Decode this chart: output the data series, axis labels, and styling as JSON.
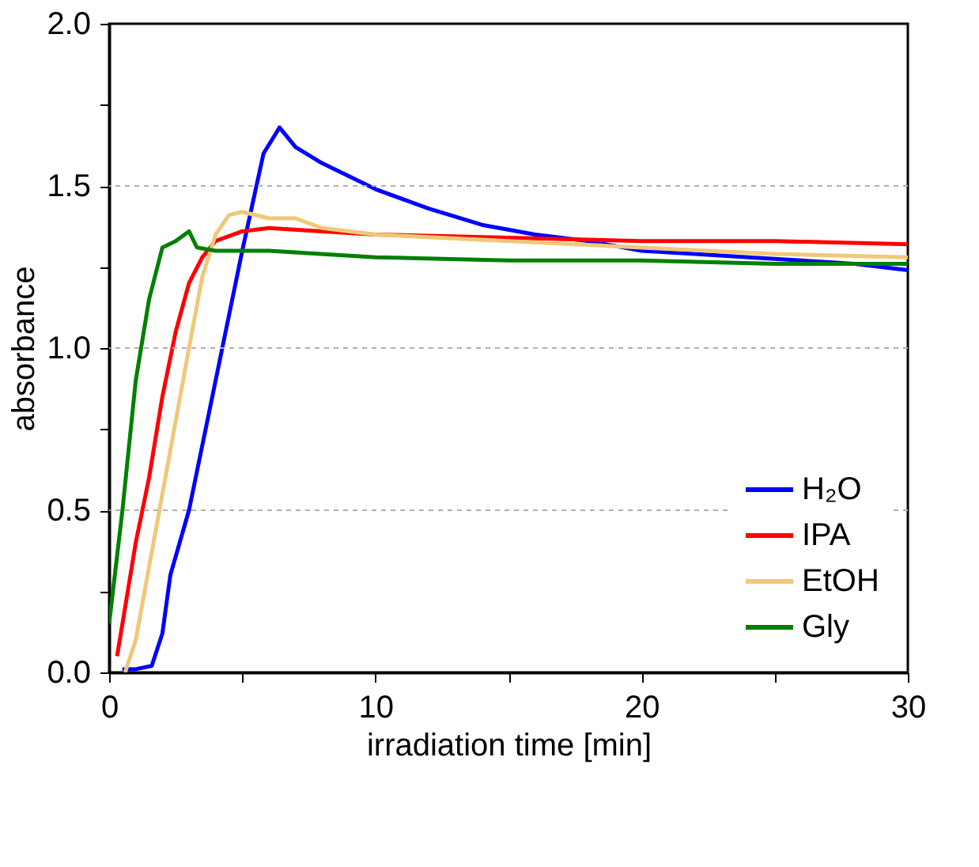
{
  "chart_data": {
    "type": "line",
    "xlabel": "irradiation time [min]",
    "ylabel": "absorbance",
    "xlim": [
      0,
      30
    ],
    "ylim": [
      0,
      2.0
    ],
    "xticks": [
      0,
      {
        "value": 5,
        "label": null
      },
      10,
      {
        "value": 15,
        "label": null
      },
      20,
      {
        "value": 25,
        "label": null
      },
      30
    ],
    "yticks": [
      {
        "value": 0,
        "label": "0.0"
      },
      {
        "value": 0.25,
        "label": null
      },
      {
        "value": 0.5,
        "label": "0.5"
      },
      {
        "value": 0.75,
        "label": null
      },
      {
        "value": 1.0,
        "label": "1.0"
      },
      {
        "value": 1.25,
        "label": null
      },
      {
        "value": 1.5,
        "label": "1.5"
      },
      {
        "value": 1.75,
        "label": null
      },
      {
        "value": 2.0,
        "label": "2.0"
      }
    ],
    "grid": "y",
    "legend": "bottom right",
    "line_style": "solid",
    "marker": "none",
    "series": [
      {
        "name": "H₂O",
        "color": "#0000ff",
        "x": [
          0.5,
          1,
          1.6,
          2.0,
          2.3,
          3,
          4,
          5,
          5.8,
          6.4,
          7,
          8,
          10,
          12,
          14,
          16,
          18,
          20,
          22,
          24,
          26,
          28,
          30
        ],
        "values": [
          0.01,
          0.01,
          0.02,
          0.12,
          0.3,
          0.5,
          0.9,
          1.3,
          1.6,
          1.68,
          1.62,
          1.57,
          1.49,
          1.43,
          1.38,
          1.35,
          1.33,
          1.3,
          1.29,
          1.28,
          1.27,
          1.26,
          1.24
        ]
      },
      {
        "name": "IPA",
        "color": "#ff0000",
        "x": [
          0.3,
          0.6,
          1,
          1.5,
          2,
          2.5,
          3,
          3.5,
          4,
          5,
          6,
          8,
          10,
          15,
          20,
          25,
          30
        ],
        "values": [
          0.05,
          0.2,
          0.4,
          0.6,
          0.85,
          1.05,
          1.2,
          1.28,
          1.33,
          1.36,
          1.37,
          1.36,
          1.35,
          1.34,
          1.33,
          1.33,
          1.32
        ]
      },
      {
        "name": "EtOH",
        "color": "#f0c878",
        "x": [
          0.6,
          1,
          2,
          3,
          3.5,
          4,
          4.5,
          5,
          6,
          7,
          8,
          10,
          15,
          20,
          25,
          30
        ],
        "values": [
          0.0,
          0.1,
          0.55,
          1.0,
          1.22,
          1.35,
          1.41,
          1.42,
          1.4,
          1.4,
          1.37,
          1.35,
          1.33,
          1.31,
          1.29,
          1.28
        ]
      },
      {
        "name": "Gly",
        "color": "#008000",
        "x": [
          0,
          0.5,
          1,
          1.5,
          2,
          2.5,
          3,
          3.3,
          4,
          6,
          10,
          15,
          20,
          25,
          30
        ],
        "values": [
          0.15,
          0.5,
          0.9,
          1.15,
          1.31,
          1.33,
          1.36,
          1.31,
          1.3,
          1.3,
          1.28,
          1.27,
          1.27,
          1.26,
          1.26
        ]
      }
    ]
  }
}
